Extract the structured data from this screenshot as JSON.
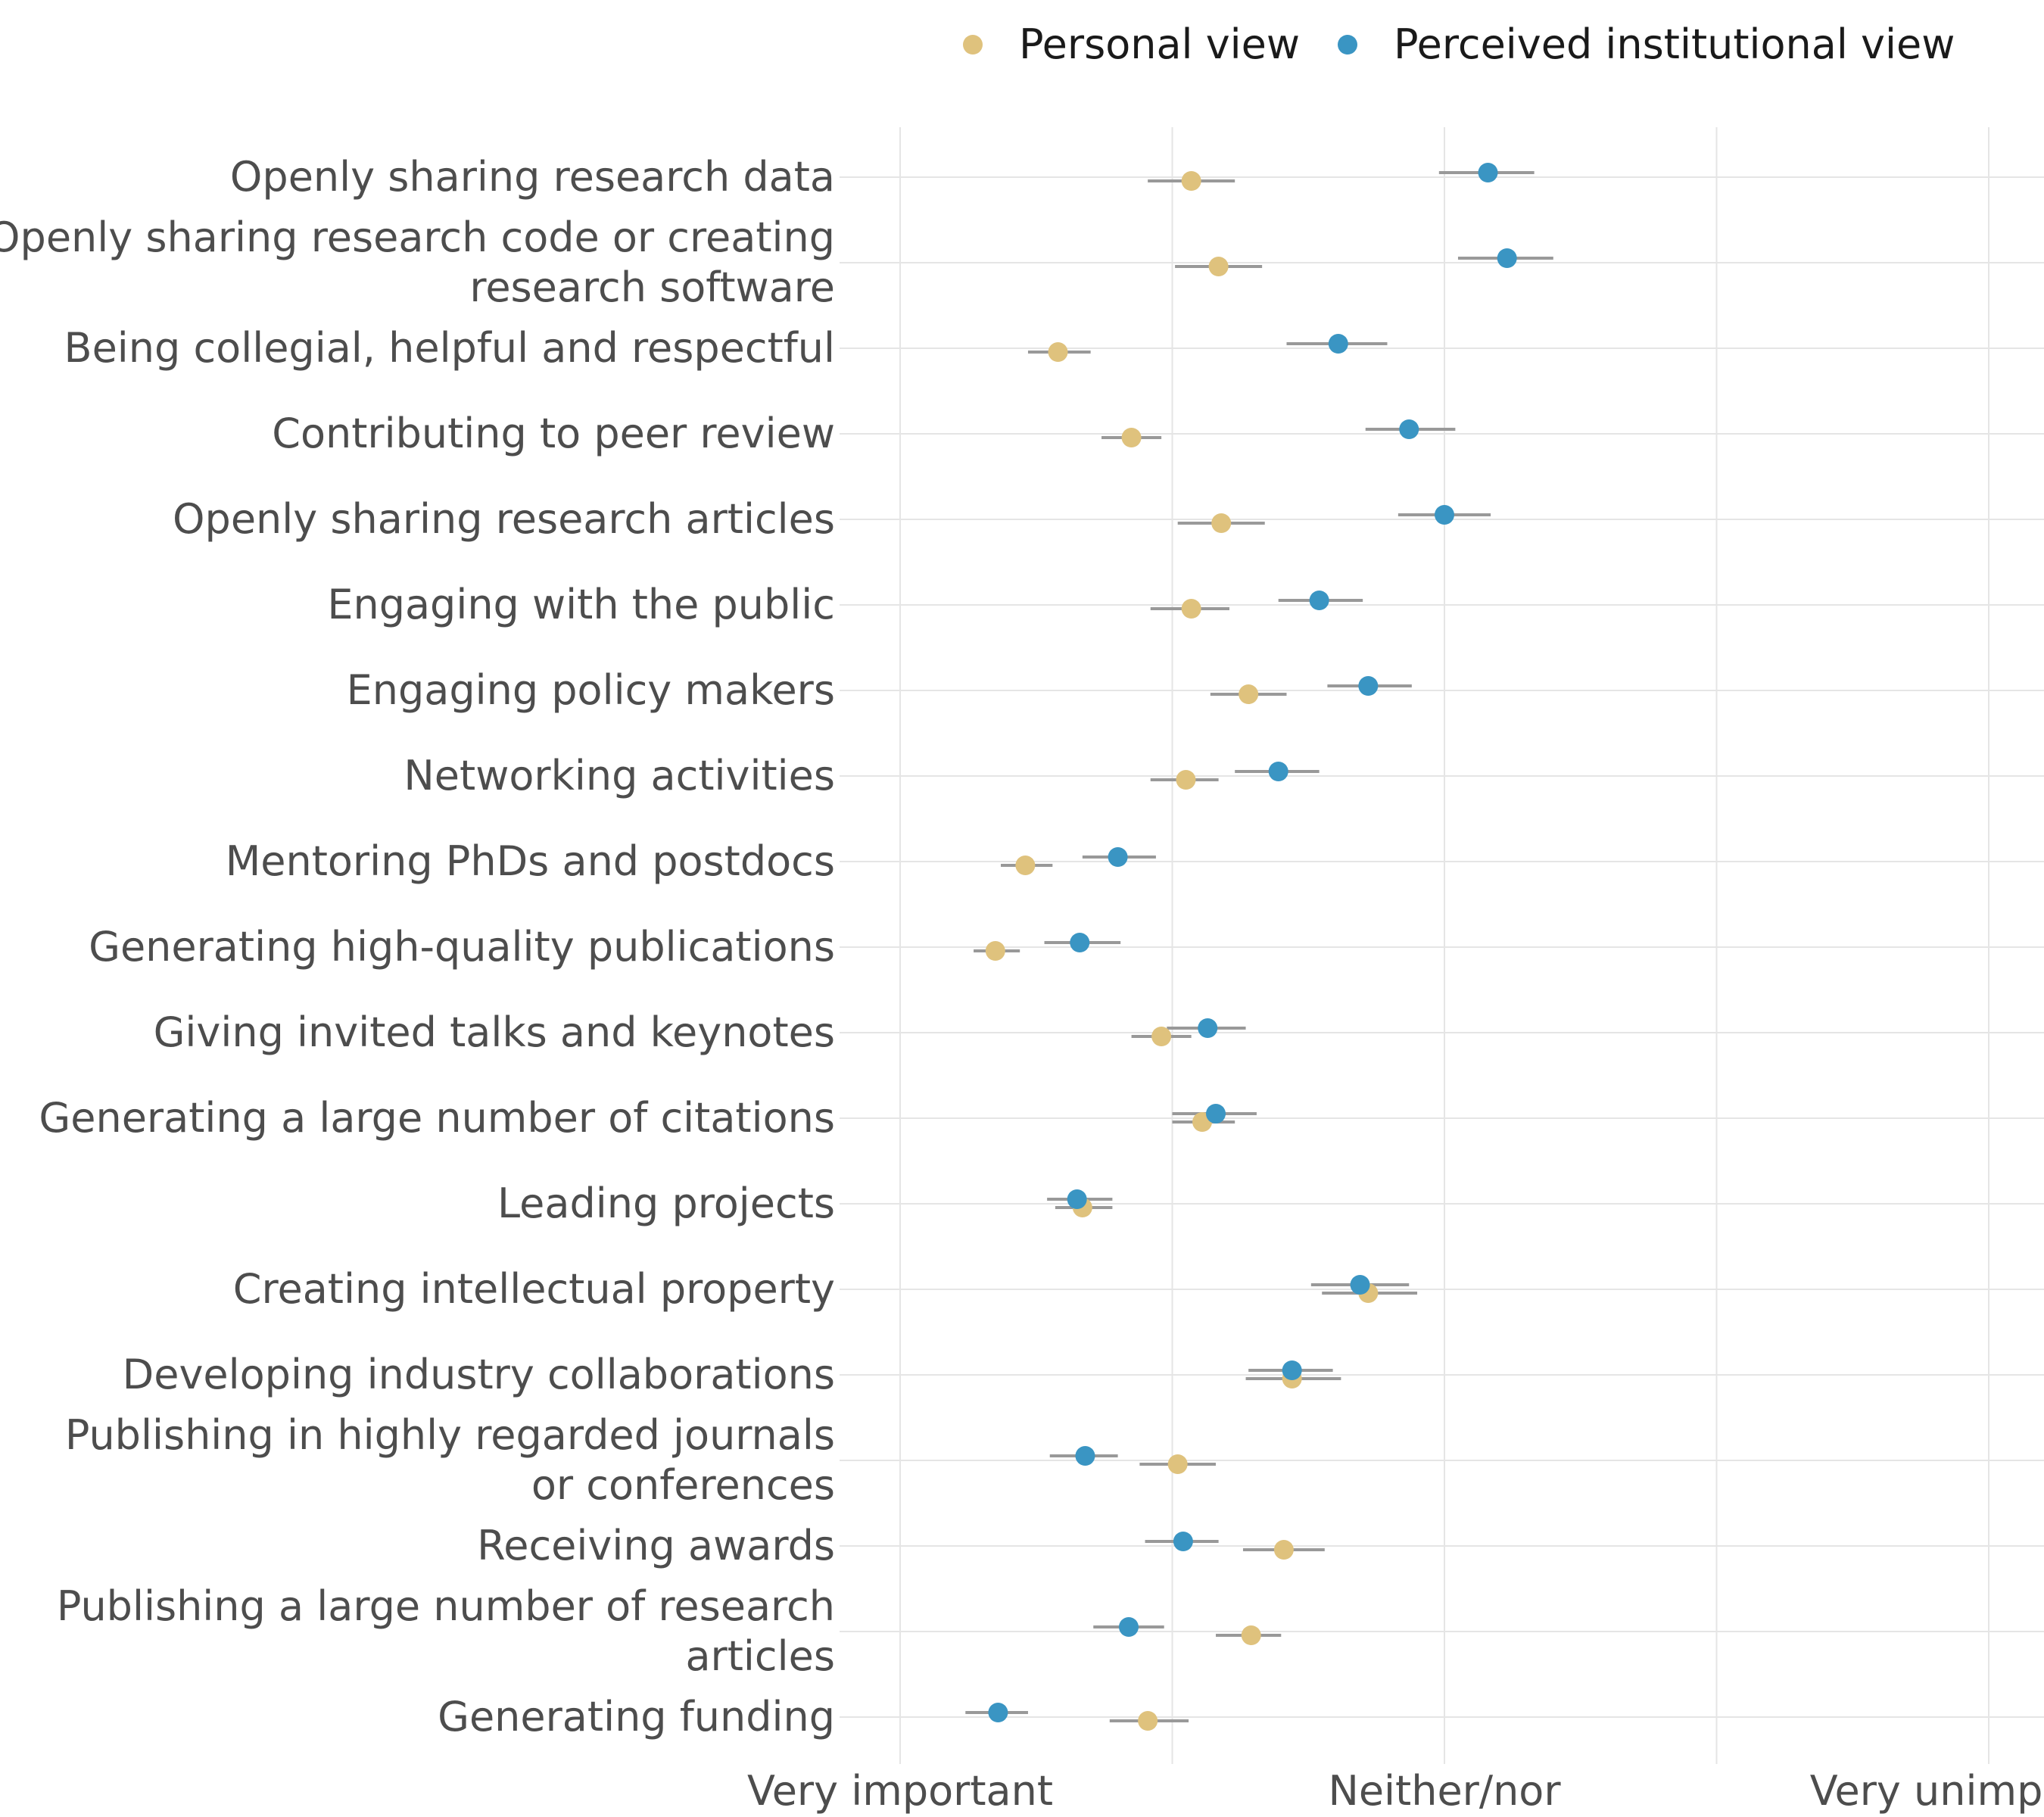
{
  "chart_data": {
    "type": "scatter",
    "title": "",
    "xlabel": "",
    "ylabel": "",
    "x_scale": "Likert 1-5 (1 = Very important, 3 = Neither/nor, 5 = Very unimportant)",
    "xlim": [
      1,
      5
    ],
    "x_ticks": [
      {
        "value": 1,
        "label": "Very important"
      },
      {
        "value": 3,
        "label": "Neither/nor"
      },
      {
        "value": 5,
        "label": "Very unimportant"
      }
    ],
    "grid": true,
    "legend_position": "top-right",
    "colors": {
      "personal": "#dfc27d",
      "institutional": "#3a95c3",
      "errorbar": "#999999",
      "grid": "#e5e5e5"
    },
    "series": [
      {
        "key": "personal",
        "name": "Personal view",
        "color": "#dfc27d"
      },
      {
        "key": "institutional",
        "name": "Perceived institutional view",
        "color": "#3a95c3"
      }
    ],
    "categories": [
      {
        "label": [
          "Openly sharing research data"
        ],
        "personal": {
          "mean": 2.07,
          "low": 1.91,
          "high": 2.23
        },
        "institutional": {
          "mean": 3.16,
          "low": 2.98,
          "high": 3.33
        }
      },
      {
        "label": [
          "Openly sharing research code or creating",
          "research software"
        ],
        "personal": {
          "mean": 2.17,
          "low": 2.01,
          "high": 2.33
        },
        "institutional": {
          "mean": 3.23,
          "low": 3.05,
          "high": 3.4
        }
      },
      {
        "label": [
          "Being collegial, helpful and respectful"
        ],
        "personal": {
          "mean": 1.58,
          "low": 1.47,
          "high": 1.7
        },
        "institutional": {
          "mean": 2.61,
          "low": 2.42,
          "high": 2.79
        }
      },
      {
        "label": [
          "Contributing to peer review"
        ],
        "personal": {
          "mean": 1.85,
          "low": 1.74,
          "high": 1.96
        },
        "institutional": {
          "mean": 2.87,
          "low": 2.71,
          "high": 3.04
        }
      },
      {
        "label": [
          "Openly sharing research articles"
        ],
        "personal": {
          "mean": 2.18,
          "low": 2.02,
          "high": 2.34
        },
        "institutional": {
          "mean": 3.0,
          "low": 2.83,
          "high": 3.17
        }
      },
      {
        "label": [
          "Engaging with the public"
        ],
        "personal": {
          "mean": 2.07,
          "low": 1.92,
          "high": 2.21
        },
        "institutional": {
          "mean": 2.54,
          "low": 2.39,
          "high": 2.7
        }
      },
      {
        "label": [
          "Engaging policy makers"
        ],
        "personal": {
          "mean": 2.28,
          "low": 2.14,
          "high": 2.42
        },
        "institutional": {
          "mean": 2.72,
          "low": 2.57,
          "high": 2.88
        }
      },
      {
        "label": [
          "Networking activities"
        ],
        "personal": {
          "mean": 2.05,
          "low": 1.92,
          "high": 2.17
        },
        "institutional": {
          "mean": 2.39,
          "low": 2.23,
          "high": 2.54
        }
      },
      {
        "label": [
          "Mentoring PhDs and postdocs"
        ],
        "personal": {
          "mean": 1.46,
          "low": 1.37,
          "high": 1.56
        },
        "institutional": {
          "mean": 1.8,
          "low": 1.67,
          "high": 1.94
        }
      },
      {
        "label": [
          "Generating high-quality publications"
        ],
        "personal": {
          "mean": 1.35,
          "low": 1.27,
          "high": 1.44
        },
        "institutional": {
          "mean": 1.66,
          "low": 1.53,
          "high": 1.81
        }
      },
      {
        "label": [
          "Giving invited talks and keynotes"
        ],
        "personal": {
          "mean": 1.96,
          "low": 1.85,
          "high": 2.07
        },
        "institutional": {
          "mean": 2.13,
          "low": 1.98,
          "high": 2.27
        }
      },
      {
        "label": [
          "Generating a large number of citations"
        ],
        "personal": {
          "mean": 2.11,
          "low": 2.0,
          "high": 2.23
        },
        "institutional": {
          "mean": 2.16,
          "low": 2.0,
          "high": 2.31
        }
      },
      {
        "label": [
          "Leading projects"
        ],
        "personal": {
          "mean": 1.67,
          "low": 1.57,
          "high": 1.78
        },
        "institutional": {
          "mean": 1.65,
          "low": 1.54,
          "high": 1.78
        }
      },
      {
        "label": [
          "Creating intellectual property"
        ],
        "personal": {
          "mean": 2.72,
          "low": 2.55,
          "high": 2.9
        },
        "institutional": {
          "mean": 2.69,
          "low": 2.51,
          "high": 2.87
        }
      },
      {
        "label": [
          "Developing industry collaborations"
        ],
        "personal": {
          "mean": 2.44,
          "low": 2.27,
          "high": 2.62
        },
        "institutional": {
          "mean": 2.44,
          "low": 2.28,
          "high": 2.59
        }
      },
      {
        "label": [
          "Publishing in highly regarded journals",
          "or conferences"
        ],
        "personal": {
          "mean": 2.02,
          "low": 1.88,
          "high": 2.16
        },
        "institutional": {
          "mean": 1.68,
          "low": 1.55,
          "high": 1.8
        }
      },
      {
        "label": [
          "Receiving awards"
        ],
        "personal": {
          "mean": 2.41,
          "low": 2.26,
          "high": 2.56
        },
        "institutional": {
          "mean": 2.04,
          "low": 1.9,
          "high": 2.17
        }
      },
      {
        "label": [
          "Publishing a large number of research",
          "articles"
        ],
        "personal": {
          "mean": 2.29,
          "low": 2.16,
          "high": 2.4
        },
        "institutional": {
          "mean": 1.84,
          "low": 1.71,
          "high": 1.97
        }
      },
      {
        "label": [
          "Generating funding"
        ],
        "personal": {
          "mean": 1.91,
          "low": 1.77,
          "high": 2.06
        },
        "institutional": {
          "mean": 1.36,
          "low": 1.24,
          "high": 1.47
        }
      }
    ]
  }
}
